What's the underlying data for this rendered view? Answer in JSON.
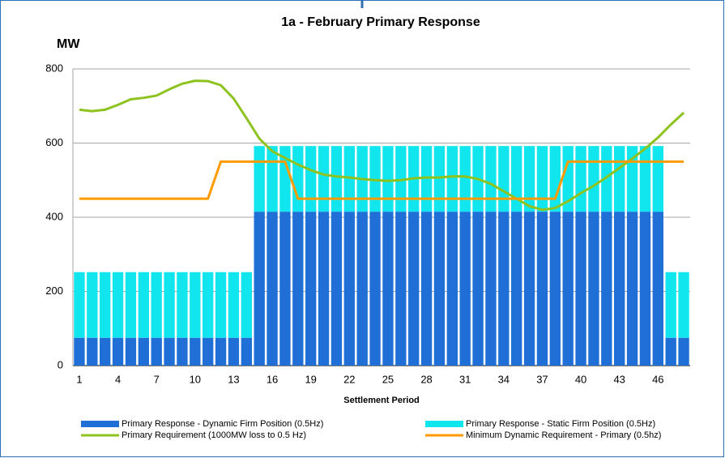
{
  "chart_data": {
    "type": "bar",
    "stacked": true,
    "title": "1a - February Primary Response",
    "y_label": "MW",
    "x_label": "Settlement Period",
    "categories": [
      1,
      null,
      null,
      4,
      null,
      null,
      7,
      null,
      null,
      10,
      null,
      null,
      13,
      null,
      null,
      16,
      null,
      null,
      19,
      null,
      null,
      22,
      null,
      null,
      25,
      null,
      null,
      28,
      null,
      null,
      31,
      null,
      null,
      34,
      null,
      null,
      37,
      null,
      null,
      40,
      null,
      null,
      43,
      null,
      null,
      46,
      null,
      null
    ],
    "ylim": [
      0,
      800
    ],
    "yticks": [
      0,
      200,
      400,
      600,
      800
    ],
    "grid": true,
    "series": [
      {
        "name": "Primary Response - Dynamic Firm Position (0.5Hz)",
        "type": "bar",
        "color": "#1f6fd6",
        "values": [
          75,
          75,
          75,
          75,
          75,
          75,
          75,
          75,
          75,
          75,
          75,
          75,
          75,
          75,
          415,
          415,
          415,
          415,
          415,
          415,
          415,
          415,
          415,
          415,
          415,
          415,
          415,
          415,
          415,
          415,
          415,
          415,
          415,
          415,
          415,
          415,
          415,
          415,
          415,
          415,
          415,
          415,
          415,
          415,
          415,
          415,
          75,
          75
        ]
      },
      {
        "name": "Primary Response - Static Firm Position (0.5Hz)",
        "type": "bar",
        "color": "#11e6ee",
        "values": [
          177,
          177,
          177,
          177,
          177,
          177,
          177,
          177,
          177,
          177,
          177,
          177,
          177,
          177,
          177,
          177,
          177,
          177,
          177,
          177,
          177,
          177,
          177,
          177,
          177,
          177,
          177,
          177,
          177,
          177,
          177,
          177,
          177,
          177,
          177,
          177,
          177,
          177,
          177,
          177,
          177,
          177,
          177,
          177,
          177,
          177,
          177,
          177
        ]
      },
      {
        "name": "Primary Requirement (1000MW loss to 0.5 Hz)",
        "type": "line",
        "color": "#8dc21f",
        "values": [
          690,
          686,
          690,
          703,
          718,
          722,
          728,
          745,
          760,
          768,
          767,
          756,
          720,
          667,
          612,
          578,
          560,
          542,
          527,
          515,
          510,
          507,
          503,
          500,
          498,
          500,
          505,
          507,
          507,
          510,
          510,
          503,
          490,
          470,
          450,
          430,
          420,
          425,
          443,
          465,
          485,
          508,
          533,
          558,
          585,
          615,
          650,
          682
        ]
      },
      {
        "name": "Minimum Dynamic Requirement - Primary (0.5hz)",
        "type": "line",
        "color": "#ff9a00",
        "values": [
          450,
          450,
          450,
          450,
          450,
          450,
          450,
          450,
          450,
          450,
          450,
          550,
          550,
          550,
          550,
          550,
          550,
          450,
          450,
          450,
          450,
          450,
          450,
          450,
          450,
          450,
          450,
          450,
          450,
          450,
          450,
          450,
          450,
          450,
          450,
          450,
          450,
          450,
          550,
          550,
          550,
          550,
          550,
          550,
          550,
          550,
          550,
          550
        ]
      }
    ]
  }
}
